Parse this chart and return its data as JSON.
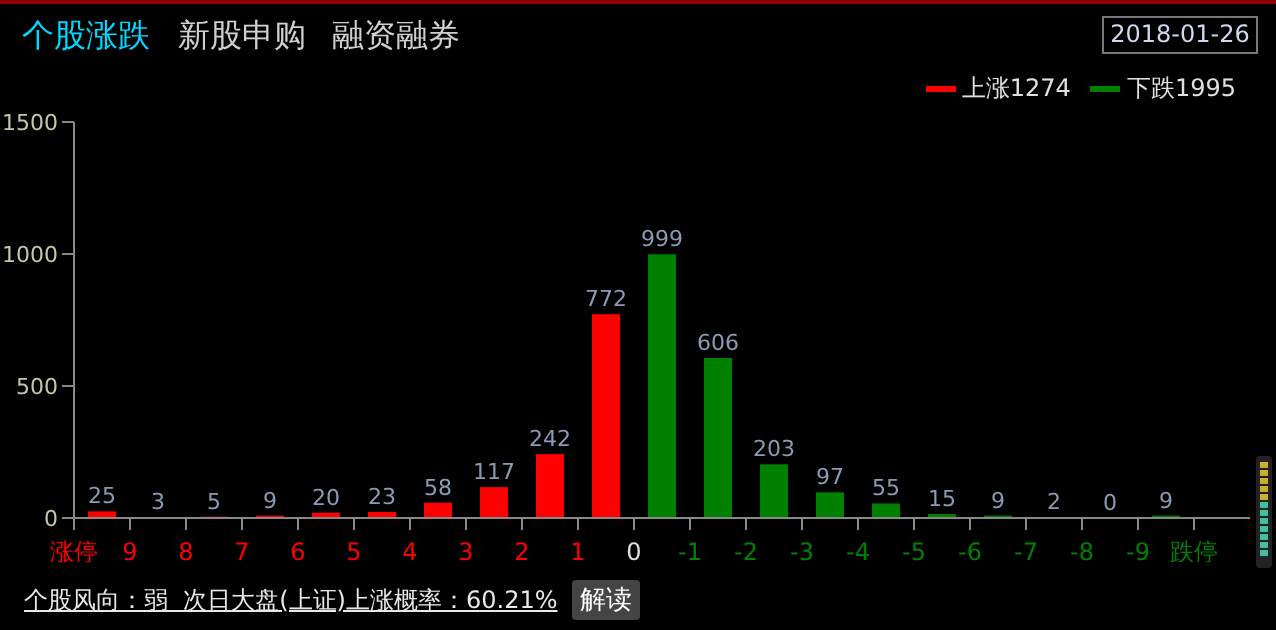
{
  "chart_data": {
    "type": "bar",
    "title": "个股涨跌",
    "annotations": [
      "新股申购",
      "融资融券",
      "2018-01-26",
      "个股风向：弱  次日大盘(上证)上涨概率：60.21%",
      "解读"
    ],
    "series": [
      {
        "name": "上涨1274",
        "color": "#ff0000",
        "x": [
          9.5,
          8.5,
          7.5,
          6.5,
          5.5,
          4.5,
          3.5,
          2.5,
          1.5,
          0.5
        ],
        "values": [
          25,
          3,
          5,
          9,
          20,
          23,
          58,
          117,
          242,
          772
        ]
      },
      {
        "name": "下跌1995",
        "color": "#008000",
        "x": [
          -0.5,
          -1.5,
          -2.5,
          -3.5,
          -4.5,
          -5.5,
          -6.5,
          -7.5,
          -8.5,
          -9.5
        ],
        "values": [
          999,
          606,
          203,
          97,
          55,
          15,
          9,
          2,
          0,
          9
        ]
      }
    ],
    "xlim": [
      10,
      -11
    ],
    "xticks": [
      {
        "value": 10,
        "label": "涨停"
      },
      9,
      8,
      7,
      6,
      5,
      4,
      3,
      2,
      1,
      0,
      -1,
      -2,
      -3,
      -4,
      -5,
      -6,
      -7,
      -8,
      -9,
      {
        "value": -10,
        "label": "跌停"
      }
    ],
    "ylim": [
      0,
      1500
    ],
    "yticks": [
      0,
      500,
      1000,
      1500
    ],
    "data_labels": true,
    "legend": "top right",
    "grid": false
  }
}
